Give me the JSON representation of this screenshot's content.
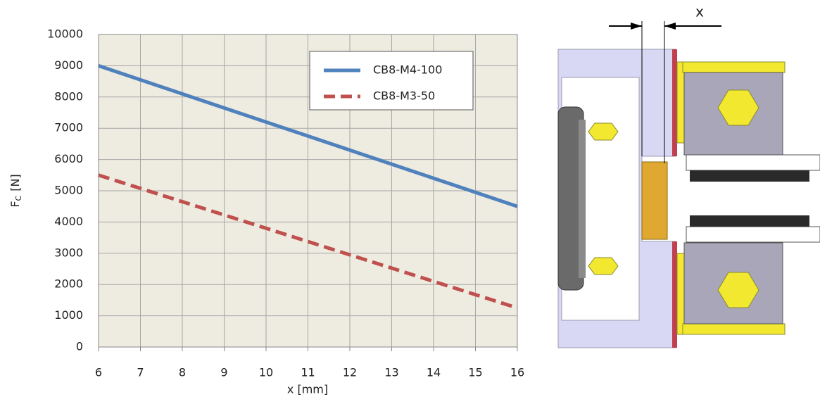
{
  "chart_data": {
    "type": "line",
    "x_label": "x [mm]",
    "y_label": "F",
    "y_label_sub": "C",
    "y_label_unit": "[N]",
    "x": [
      6,
      7,
      8,
      9,
      10,
      11,
      12,
      13,
      14,
      15,
      16
    ],
    "series": [
      {
        "name": "CB8-M4-100",
        "color": "#4f81bd",
        "dash": "solid",
        "values": [
          9000,
          8550,
          8100,
          7650,
          7200,
          6750,
          6300,
          5850,
          5400,
          4950,
          4500
        ]
      },
      {
        "name": "CB8-M3-50",
        "color": "#c0504d",
        "dash": "dashed",
        "values": [
          5500,
          5075,
          4650,
          4225,
          3800,
          3375,
          2950,
          2525,
          2100,
          1675,
          1250
        ]
      }
    ],
    "xlim": [
      6,
      16
    ],
    "xticks": [
      6,
      7,
      8,
      9,
      10,
      11,
      12,
      13,
      14,
      15,
      16
    ],
    "ylim": [
      0,
      10000
    ],
    "yticks": [
      0,
      1000,
      2000,
      3000,
      4000,
      5000,
      6000,
      7000,
      8000,
      9000,
      10000
    ],
    "grid": true,
    "legend": "top-right",
    "background": "#eeebe0"
  },
  "diagram": {
    "label": "x"
  }
}
